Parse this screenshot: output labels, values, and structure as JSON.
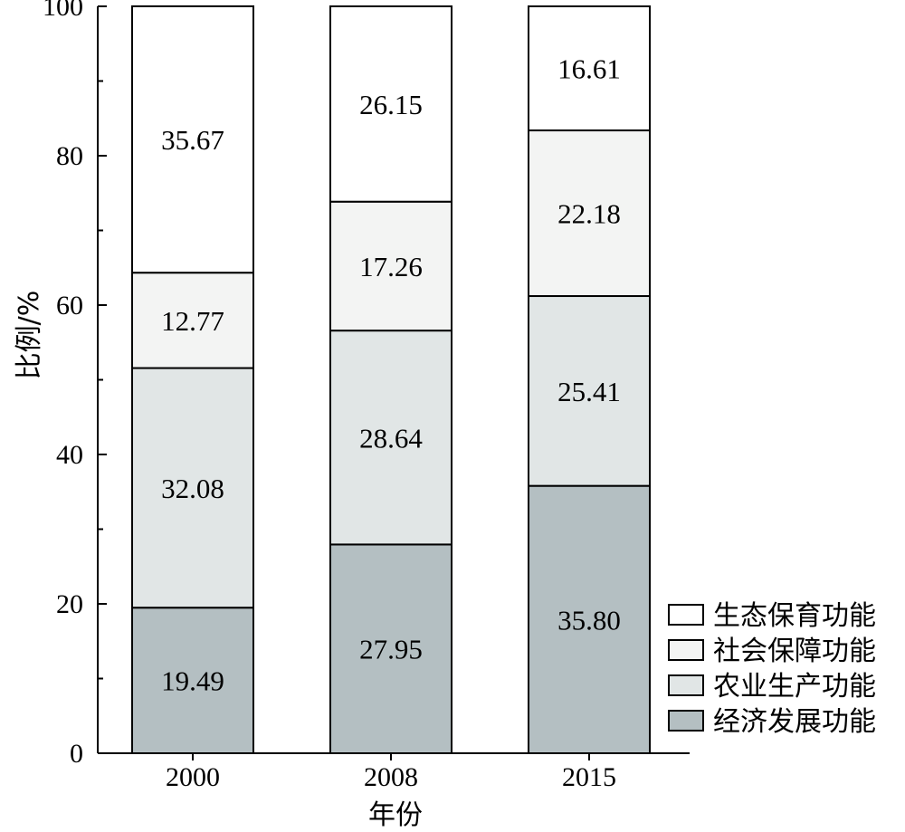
{
  "chart_data": {
    "type": "bar",
    "stacked": true,
    "title": "",
    "xlabel": "年份",
    "ylabel": "比例/%",
    "ylim": [
      0,
      100
    ],
    "yticks": [
      0,
      20,
      40,
      60,
      80,
      100
    ],
    "categories": [
      "2000",
      "2008",
      "2015"
    ],
    "series": [
      {
        "name": "经济发展功能",
        "values": [
          19.49,
          27.95,
          35.8
        ],
        "labels": [
          "19.49",
          "27.95",
          "35.80"
        ],
        "color": "#b4bfc2"
      },
      {
        "name": "农业生产功能",
        "values": [
          32.08,
          28.64,
          25.41
        ],
        "labels": [
          "32.08",
          "28.64",
          "25.41"
        ],
        "color": "#e1e6e6"
      },
      {
        "name": "社会保障功能",
        "values": [
          12.77,
          17.26,
          22.18
        ],
        "labels": [
          "12.77",
          "17.26",
          "22.18"
        ],
        "color": "#f3f4f3"
      },
      {
        "name": "生态保育功能",
        "values": [
          35.67,
          26.15,
          16.61
        ],
        "labels": [
          "35.67",
          "26.15",
          "16.61"
        ],
        "color": "#ffffff"
      }
    ],
    "legend": {
      "position": "bottom-right",
      "order": [
        "生态保育功能",
        "社会保障功能",
        "农业生产功能",
        "经济发展功能"
      ]
    },
    "grid": false
  }
}
